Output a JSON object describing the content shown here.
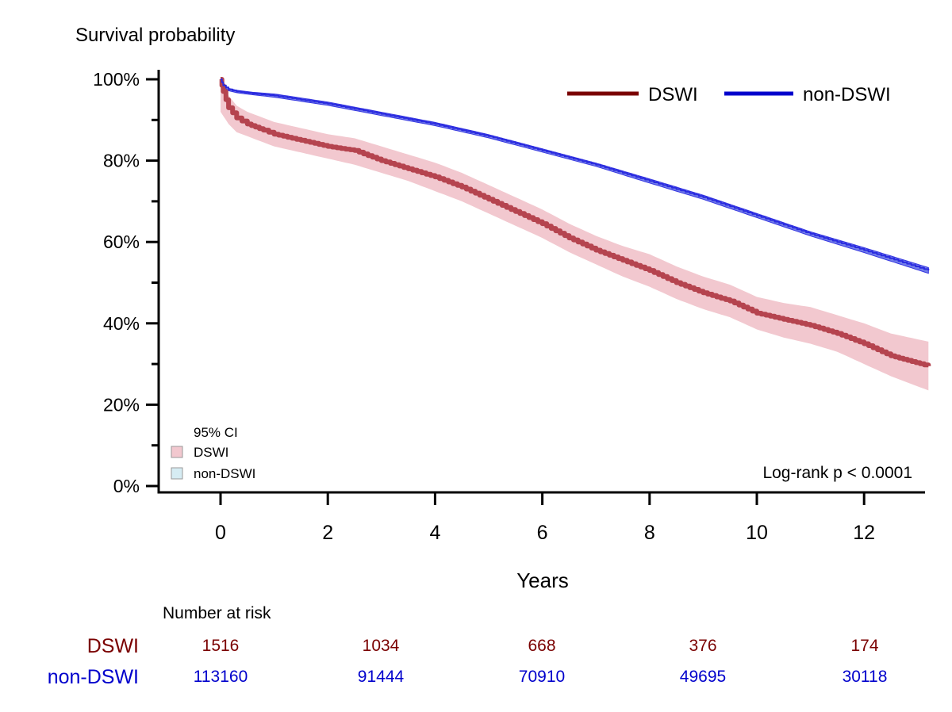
{
  "chart_data": {
    "type": "line",
    "subtype": "kaplan-meier",
    "ylabel": "Survival probability",
    "xlabel": "Years",
    "xlim": [
      -1.1,
      13.2
    ],
    "ylim": [
      0,
      100
    ],
    "xticks": [
      0,
      2,
      4,
      6,
      8,
      10,
      12
    ],
    "xtick_labels": [
      "0",
      "2",
      "4",
      "6",
      "8",
      "10",
      "12"
    ],
    "yticks": [
      0,
      20,
      40,
      60,
      80,
      100
    ],
    "ytick_labels": [
      "0%",
      "20%",
      "40%",
      "60%",
      "80%",
      "100%"
    ],
    "yminor_ticks": [
      10,
      30,
      50,
      70,
      90
    ],
    "grid": false,
    "legend": {
      "placement": "top-right",
      "entries": [
        "DSWI",
        "non-DSWI"
      ]
    },
    "ci_legend": {
      "placement": "bottom-left",
      "title": "95% CI",
      "entries": [
        "DSWI",
        "non-DSWI"
      ]
    },
    "annotation": "Log-rank p < 0.0001",
    "series": [
      {
        "name": "DSWI",
        "color": "#7a0000",
        "line_color": "#b5444f",
        "ci_color": "#f2c8cf",
        "x": [
          0,
          0.05,
          0.15,
          0.3,
          0.5,
          0.8,
          1,
          1.5,
          2,
          2.5,
          3,
          3.5,
          4,
          4.5,
          5,
          5.5,
          6,
          6.5,
          7,
          7.5,
          8,
          8.5,
          9,
          9.5,
          10,
          10.5,
          11,
          11.5,
          12,
          12.5,
          13.2
        ],
        "y": [
          100,
          97,
          93,
          90.5,
          89,
          87.5,
          86.5,
          85,
          83.5,
          82.5,
          80,
          78,
          76,
          73.5,
          70.5,
          67.5,
          64.5,
          61,
          58,
          55.5,
          53,
          50,
          47.5,
          45.5,
          42.5,
          41,
          39.5,
          37.5,
          35,
          32,
          29.5
        ],
        "ci_lower": [
          92,
          91,
          89,
          87,
          86,
          84.5,
          83.5,
          82,
          80.5,
          79,
          77,
          75,
          72.5,
          70,
          67,
          64,
          61,
          57.5,
          54.5,
          51.5,
          49,
          46,
          43.5,
          41.5,
          38.5,
          36.5,
          35,
          33,
          30,
          27,
          23.5
        ],
        "ci_upper": [
          100,
          99,
          96,
          93.5,
          92,
          90.5,
          89.5,
          88,
          86.5,
          85.5,
          83.5,
          81.5,
          79.5,
          77,
          74,
          71,
          68,
          64.5,
          61.5,
          59,
          57,
          54,
          51.5,
          49.5,
          46.5,
          45,
          44,
          42,
          40,
          37.5,
          35.5
        ]
      },
      {
        "name": "non-DSWI",
        "color": "#0000cc",
        "line_color": "#2a2ae0",
        "ci_color": "#6b78e8",
        "x": [
          0,
          0.05,
          0.15,
          0.3,
          0.6,
          1,
          2,
          3,
          4,
          5,
          6,
          7,
          8,
          9,
          10,
          11,
          12,
          13.2
        ],
        "y": [
          100,
          98.5,
          97.5,
          97,
          96.5,
          96,
          94,
          91.5,
          89,
          86,
          82.5,
          79,
          75,
          71,
          66.5,
          62,
          58,
          53
        ],
        "ci_lower": [
          99.5,
          98.2,
          97.2,
          96.7,
          96.2,
          95.6,
          93.6,
          91.1,
          88.6,
          85.6,
          82.1,
          78.6,
          74.5,
          70.5,
          66,
          61.5,
          57.4,
          52.3
        ],
        "ci_upper": [
          100,
          98.8,
          97.8,
          97.3,
          96.8,
          96.4,
          94.4,
          91.9,
          89.4,
          86.4,
          82.9,
          79.4,
          75.5,
          71.5,
          67,
          62.5,
          58.6,
          53.7
        ]
      }
    ],
    "risk_table": {
      "title": "Number at risk",
      "timepoints": [
        0,
        3,
        6,
        9,
        12
      ],
      "rows": [
        {
          "name": "DSWI",
          "color": "#7a0000",
          "values": [
            "1516",
            "1034",
            "668",
            "376",
            "174"
          ]
        },
        {
          "name": "non-DSWI",
          "color": "#0000cc",
          "values": [
            "113160",
            "91444",
            "70910",
            "49695",
            "30118"
          ]
        }
      ]
    }
  }
}
